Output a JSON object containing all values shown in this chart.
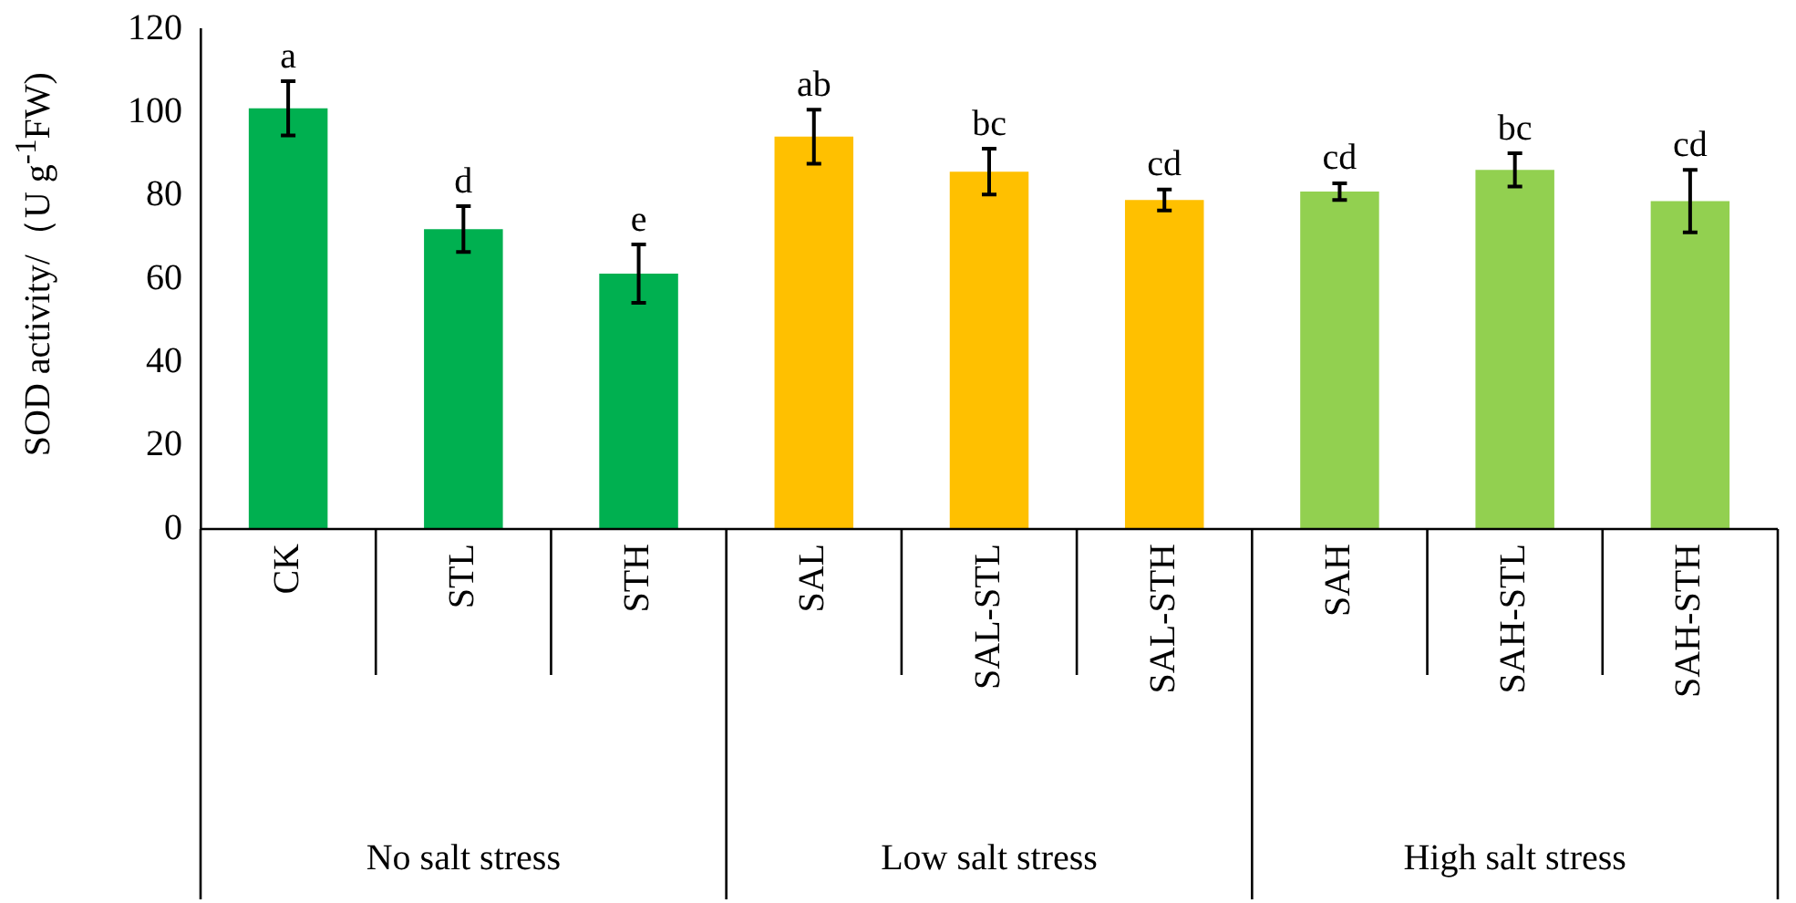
{
  "chart_data": {
    "type": "bar",
    "ylabel": "SOD activity/（U g$^{-1}$FW)",
    "categories": [
      "CK",
      "STL",
      "STH",
      "SAL",
      "SAL-STL",
      "SAL-STH",
      "SAH",
      "SAH-STL",
      "SAH-STH"
    ],
    "values": [
      101,
      72,
      61.3,
      94.2,
      85.8,
      79,
      81,
      86.2,
      78.7
    ],
    "errors": [
      6.5,
      5.5,
      7,
      6.5,
      5.5,
      2.5,
      2,
      4,
      7.5
    ],
    "value_labels": [
      "a",
      "d",
      "e",
      "ab",
      "bc",
      "cd",
      "cd",
      "bc",
      "cd"
    ],
    "colors": [
      "#00b050",
      "#00b050",
      "#00b050",
      "#ffc000",
      "#ffc000",
      "#ffc000",
      "#92d050",
      "#92d050",
      "#92d050"
    ],
    "annotations": [
      "No salt stress",
      "Low salt stress",
      "High salt stress"
    ],
    "ylim": [
      0,
      120
    ],
    "yticks": [
      0,
      20,
      40,
      60,
      80,
      100,
      120
    ],
    "grid": false,
    "legend": false
  }
}
